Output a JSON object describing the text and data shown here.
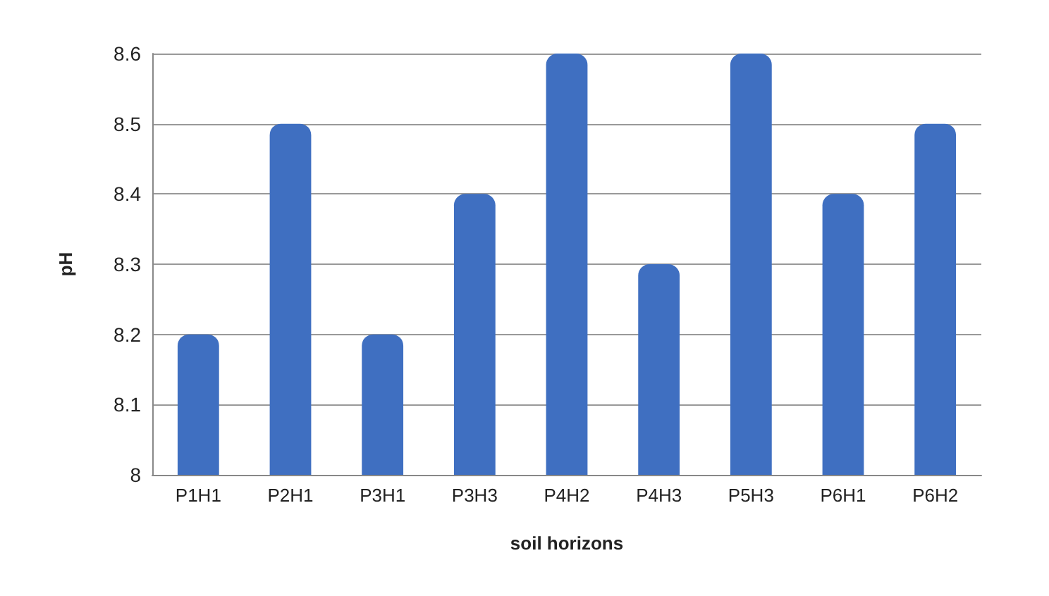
{
  "chart_data": {
    "type": "bar",
    "xlabel": "soil horizons",
    "ylabel": "pH",
    "categories": [
      "P1H1",
      "P2H1",
      "P3H1",
      "P3H3",
      "P4H2",
      "P4H3",
      "P5H3",
      "P6H1",
      "P6H2"
    ],
    "values": [
      8.2,
      8.5,
      8.2,
      8.4,
      8.6,
      8.3,
      8.6,
      8.4,
      8.5
    ],
    "color": "#3f6fc1",
    "ylim": [
      8,
      8.6
    ],
    "yticks": [
      8,
      8.1,
      8.2,
      8.3,
      8.4,
      8.5,
      8.6
    ],
    "grid": "y"
  }
}
